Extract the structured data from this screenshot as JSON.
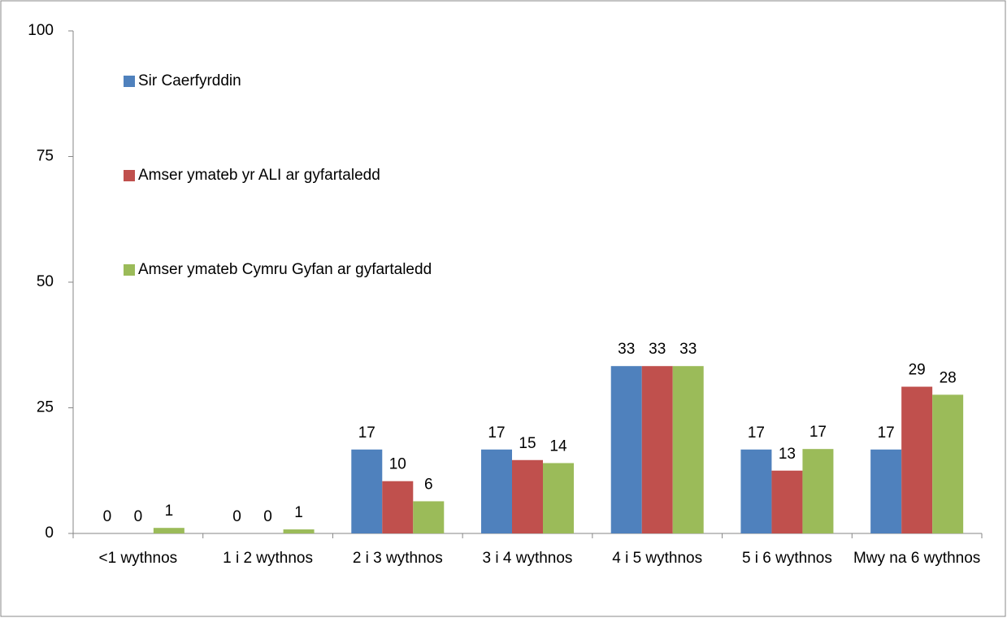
{
  "chart_data": {
    "type": "bar",
    "categories": [
      "<1 wythnos",
      "1 i 2 wythnos",
      "2 i 3 wythnos",
      "3 i 4 wythnos",
      "4 i 5 wythnos",
      "5 i 6 wythnos",
      "Mwy na 6 wythnos"
    ],
    "series": [
      {
        "name": "Sir Caerfyrddin",
        "color": "#4f81bd",
        "values": [
          0,
          0,
          16.7,
          16.7,
          33.3,
          16.7,
          16.7
        ],
        "value_labels": [
          "0",
          "0",
          "17",
          "17",
          "33",
          "17",
          "17"
        ]
      },
      {
        "name": "Amser ymateb yr ALI ar gyfartaledd",
        "color": "#c0504d",
        "values": [
          0,
          0,
          10.4,
          14.6,
          33.3,
          12.5,
          29.2
        ],
        "value_labels": [
          "0",
          "0",
          "10",
          "15",
          "33",
          "13",
          "29"
        ]
      },
      {
        "name": "Amser ymateb Cymru Gyfan ar gyfartaledd",
        "color": "#9bbb59",
        "values": [
          1.1,
          0.8,
          6.4,
          14.0,
          33.3,
          16.8,
          27.6
        ],
        "value_labels": [
          "1",
          "1",
          "6",
          "14",
          "33",
          "17",
          "28"
        ]
      }
    ],
    "ylim": [
      0,
      100
    ],
    "yticks": [
      0,
      25,
      50,
      75,
      100
    ],
    "grid": false,
    "legend": "left"
  }
}
